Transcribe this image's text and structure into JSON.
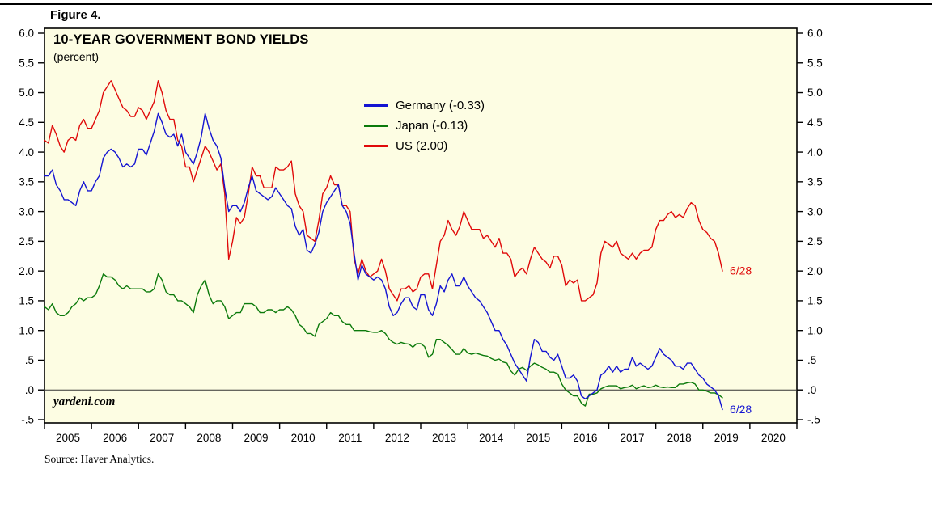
{
  "figure_label": "Figure 4.",
  "chart": {
    "title": "10-YEAR GOVERNMENT BOND YIELDS",
    "subtitle": "(percent)",
    "watermark": "yardeni.com",
    "source": "Source: Haver Analytics.",
    "background": "#fdfde3",
    "frame_color": "#000000"
  },
  "chart_data": {
    "type": "line",
    "title": "10-YEAR GOVERNMENT BOND YIELDS",
    "xlabel": "",
    "ylabel": "percent",
    "ylim": [
      -0.5,
      6.0
    ],
    "xlim": [
      2005,
      2021
    ],
    "grid": false,
    "legend_position": "inside-top-center",
    "zero_line": 0,
    "y_tick_values": [
      6.0,
      5.5,
      5.0,
      4.5,
      4.0,
      3.5,
      3.0,
      2.5,
      2.0,
      1.5,
      1.0,
      0.5,
      0.0,
      -0.5
    ],
    "y_tick_labels": [
      "6.0",
      "5.5",
      "5.0",
      "4.5",
      "4.0",
      "3.5",
      "3.0",
      "2.5",
      "2.0",
      "1.5",
      "1.0",
      ".5",
      ".0",
      "-.5"
    ],
    "x_tick_labels": [
      "2005",
      "2006",
      "2007",
      "2008",
      "2009",
      "2010",
      "2011",
      "2012",
      "2013",
      "2014",
      "2015",
      "2016",
      "2017",
      "2018",
      "2019",
      "2020"
    ],
    "x_start": 2005.0,
    "x_step_years": 0.083333,
    "series": [
      {
        "name": "US",
        "legend": "US (2.00)",
        "color": "#e00a0a",
        "last_label": "6/28",
        "values": [
          4.2,
          4.15,
          4.45,
          4.3,
          4.1,
          4.0,
          4.2,
          4.25,
          4.2,
          4.45,
          4.55,
          4.4,
          4.4,
          4.55,
          4.7,
          5.0,
          5.1,
          5.2,
          5.05,
          4.9,
          4.75,
          4.7,
          4.6,
          4.6,
          4.75,
          4.7,
          4.55,
          4.7,
          4.85,
          5.2,
          5.0,
          4.7,
          4.55,
          4.55,
          4.2,
          4.1,
          3.75,
          3.75,
          3.5,
          3.7,
          3.9,
          4.1,
          4.0,
          3.85,
          3.7,
          3.8,
          3.3,
          2.2,
          2.5,
          2.9,
          2.8,
          2.9,
          3.3,
          3.75,
          3.6,
          3.6,
          3.4,
          3.4,
          3.4,
          3.75,
          3.7,
          3.7,
          3.75,
          3.85,
          3.3,
          3.1,
          3.0,
          2.6,
          2.55,
          2.5,
          2.85,
          3.3,
          3.4,
          3.6,
          3.45,
          3.45,
          3.1,
          3.1,
          3.0,
          2.2,
          1.95,
          2.2,
          2.0,
          1.9,
          1.95,
          2.0,
          2.2,
          2.0,
          1.7,
          1.6,
          1.5,
          1.7,
          1.7,
          1.75,
          1.65,
          1.7,
          1.9,
          1.95,
          1.95,
          1.7,
          2.1,
          2.5,
          2.6,
          2.85,
          2.7,
          2.6,
          2.75,
          3.0,
          2.85,
          2.7,
          2.7,
          2.7,
          2.55,
          2.6,
          2.5,
          2.4,
          2.55,
          2.3,
          2.3,
          2.2,
          1.9,
          2.0,
          2.05,
          1.95,
          2.2,
          2.4,
          2.3,
          2.2,
          2.15,
          2.05,
          2.25,
          2.25,
          2.1,
          1.75,
          1.85,
          1.8,
          1.85,
          1.5,
          1.5,
          1.55,
          1.6,
          1.8,
          2.3,
          2.5,
          2.45,
          2.4,
          2.5,
          2.3,
          2.25,
          2.2,
          2.3,
          2.2,
          2.3,
          2.35,
          2.35,
          2.4,
          2.7,
          2.85,
          2.85,
          2.95,
          3.0,
          2.9,
          2.95,
          2.9,
          3.05,
          3.15,
          3.1,
          2.85,
          2.7,
          2.65,
          2.55,
          2.5,
          2.3,
          2.0
        ]
      },
      {
        "name": "Japan",
        "legend": "Japan (-0.13)",
        "color": "#0b7a0b",
        "last_label": "",
        "values": [
          1.4,
          1.35,
          1.45,
          1.3,
          1.25,
          1.25,
          1.3,
          1.4,
          1.45,
          1.55,
          1.5,
          1.55,
          1.55,
          1.6,
          1.75,
          1.95,
          1.9,
          1.9,
          1.85,
          1.75,
          1.7,
          1.75,
          1.7,
          1.7,
          1.7,
          1.7,
          1.65,
          1.65,
          1.7,
          1.95,
          1.85,
          1.65,
          1.6,
          1.6,
          1.5,
          1.5,
          1.45,
          1.4,
          1.3,
          1.6,
          1.75,
          1.85,
          1.6,
          1.45,
          1.5,
          1.5,
          1.4,
          1.2,
          1.25,
          1.3,
          1.3,
          1.45,
          1.45,
          1.45,
          1.4,
          1.3,
          1.3,
          1.35,
          1.35,
          1.3,
          1.35,
          1.35,
          1.4,
          1.35,
          1.25,
          1.1,
          1.05,
          0.95,
          0.95,
          0.9,
          1.1,
          1.15,
          1.2,
          1.3,
          1.25,
          1.25,
          1.15,
          1.1,
          1.1,
          1.0,
          1.0,
          1.0,
          1.0,
          0.98,
          0.97,
          0.97,
          1.0,
          0.95,
          0.85,
          0.8,
          0.77,
          0.8,
          0.78,
          0.77,
          0.72,
          0.78,
          0.78,
          0.73,
          0.55,
          0.6,
          0.85,
          0.85,
          0.8,
          0.75,
          0.68,
          0.6,
          0.6,
          0.7,
          0.62,
          0.6,
          0.62,
          0.6,
          0.58,
          0.57,
          0.53,
          0.5,
          0.52,
          0.47,
          0.45,
          0.32,
          0.25,
          0.35,
          0.38,
          0.33,
          0.4,
          0.45,
          0.42,
          0.38,
          0.35,
          0.3,
          0.3,
          0.27,
          0.1,
          0.0,
          -0.05,
          -0.1,
          -0.1,
          -0.22,
          -0.27,
          -0.07,
          -0.07,
          -0.05,
          0.02,
          0.05,
          0.07,
          0.07,
          0.07,
          0.02,
          0.04,
          0.05,
          0.08,
          0.02,
          0.05,
          0.07,
          0.04,
          0.05,
          0.08,
          0.05,
          0.04,
          0.05,
          0.04,
          0.04,
          0.1,
          0.1,
          0.12,
          0.13,
          0.1,
          0.0,
          0.0,
          -0.02,
          -0.05,
          -0.05,
          -0.08,
          -0.13
        ]
      },
      {
        "name": "Germany",
        "legend": "Germany (-0.33)",
        "color": "#1414d2",
        "last_label": "6/28",
        "values": [
          3.6,
          3.6,
          3.7,
          3.45,
          3.35,
          3.2,
          3.2,
          3.15,
          3.1,
          3.35,
          3.5,
          3.35,
          3.35,
          3.5,
          3.6,
          3.9,
          4.0,
          4.05,
          4.0,
          3.9,
          3.75,
          3.8,
          3.75,
          3.8,
          4.05,
          4.05,
          3.95,
          4.15,
          4.35,
          4.65,
          4.5,
          4.3,
          4.25,
          4.3,
          4.1,
          4.3,
          4.0,
          3.9,
          3.8,
          4.0,
          4.25,
          4.65,
          4.4,
          4.2,
          4.1,
          3.9,
          3.4,
          3.0,
          3.1,
          3.1,
          3.0,
          3.15,
          3.4,
          3.6,
          3.35,
          3.3,
          3.25,
          3.2,
          3.25,
          3.4,
          3.3,
          3.2,
          3.1,
          3.05,
          2.75,
          2.6,
          2.7,
          2.35,
          2.3,
          2.45,
          2.65,
          3.0,
          3.15,
          3.25,
          3.35,
          3.45,
          3.1,
          3.0,
          2.8,
          2.3,
          1.85,
          2.1,
          1.95,
          1.9,
          1.85,
          1.9,
          1.85,
          1.7,
          1.4,
          1.25,
          1.3,
          1.45,
          1.55,
          1.55,
          1.4,
          1.35,
          1.6,
          1.6,
          1.35,
          1.25,
          1.45,
          1.75,
          1.65,
          1.85,
          1.95,
          1.75,
          1.75,
          1.9,
          1.75,
          1.65,
          1.55,
          1.5,
          1.4,
          1.3,
          1.15,
          1.0,
          1.0,
          0.85,
          0.75,
          0.6,
          0.45,
          0.35,
          0.25,
          0.15,
          0.55,
          0.85,
          0.8,
          0.65,
          0.65,
          0.55,
          0.5,
          0.6,
          0.4,
          0.2,
          0.2,
          0.25,
          0.15,
          -0.1,
          -0.15,
          -0.1,
          -0.05,
          0.0,
          0.25,
          0.3,
          0.4,
          0.3,
          0.4,
          0.3,
          0.35,
          0.35,
          0.55,
          0.4,
          0.45,
          0.4,
          0.35,
          0.4,
          0.55,
          0.7,
          0.6,
          0.55,
          0.5,
          0.4,
          0.4,
          0.35,
          0.45,
          0.45,
          0.35,
          0.25,
          0.2,
          0.1,
          0.05,
          0.0,
          -0.1,
          -0.33
        ]
      }
    ]
  }
}
